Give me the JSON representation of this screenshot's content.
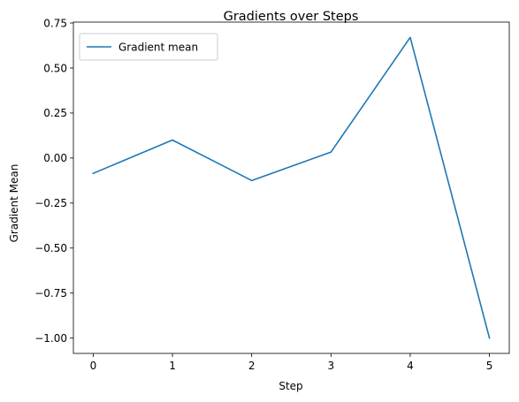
{
  "chart_data": {
    "type": "line",
    "title": "Gradients over Steps",
    "xlabel": "Step",
    "ylabel": "Gradient Mean",
    "x": [
      0,
      1,
      2,
      3,
      4,
      5
    ],
    "series": [
      {
        "name": "Gradient mean",
        "color": "#1f77b4",
        "values": [
          -0.085,
          0.1,
          -0.125,
          0.033,
          0.67,
          -1.0
        ]
      }
    ],
    "xlim": [
      -0.25,
      5.25
    ],
    "ylim": [
      -1.085,
      0.755
    ],
    "xticks": [
      0,
      1,
      2,
      3,
      4,
      5
    ],
    "xtick_labels": [
      "0",
      "1",
      "2",
      "3",
      "4",
      "5"
    ],
    "yticks": [
      0.75,
      0.5,
      0.25,
      0.0,
      -0.25,
      -0.5,
      -0.75,
      -1.0
    ],
    "ytick_labels": [
      "0.75",
      "0.50",
      "0.25",
      "0.00",
      "−0.25",
      "−0.50",
      "−0.75",
      "−1.00"
    ],
    "grid": false,
    "legend_position": "top-left"
  }
}
